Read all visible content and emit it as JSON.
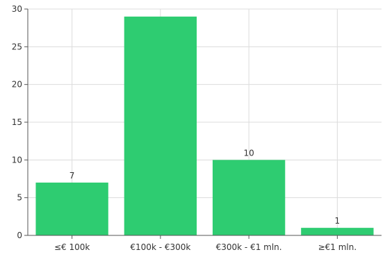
{
  "chart_data": {
    "type": "bar",
    "title": "",
    "xlabel": "",
    "ylabel": "",
    "categories": [
      "≤€ 100k",
      "€100k - €300k",
      "€300k - €1 mln.",
      "≥€1 mln."
    ],
    "values": [
      7,
      29,
      10,
      1
    ],
    "data_labels": [
      "7",
      "",
      "10",
      "1"
    ],
    "ylim": [
      0,
      30
    ],
    "yticks": [
      0,
      5,
      10,
      15,
      20,
      25,
      30
    ],
    "grid": true,
    "legend": "none",
    "bar_color": "#2ecc71"
  }
}
